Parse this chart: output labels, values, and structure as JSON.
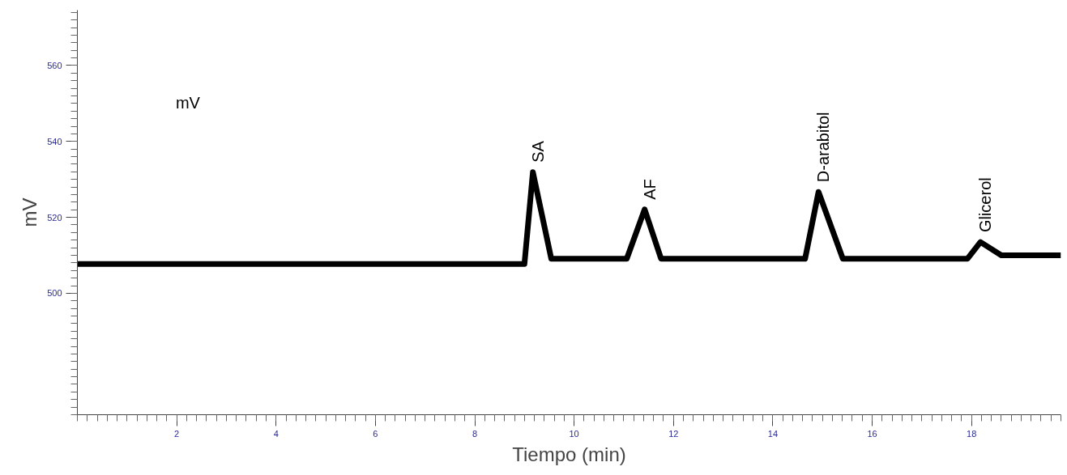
{
  "chart_data": {
    "type": "line",
    "xlabel": "Tiempo (min)",
    "ylabel": "mV",
    "series": [
      {
        "color": "#000000",
        "x": [
          0.0,
          9.0,
          9.17,
          9.54,
          11.06,
          11.42,
          11.75,
          14.65,
          14.92,
          15.41,
          17.92,
          18.18,
          18.6,
          19.8
        ],
        "values": [
          507.7,
          507.7,
          531.9,
          509.1,
          509.1,
          522.1,
          509.1,
          509.1,
          526.7,
          509.1,
          509.1,
          513.5,
          510.0,
          510.0
        ]
      }
    ],
    "xlim": [
      0,
      19.8
    ],
    "ylim": [
      468,
      574.6
    ],
    "xticks": [
      2,
      4,
      6,
      8,
      10,
      12,
      14,
      16,
      18
    ],
    "yticks": [
      500,
      520,
      540,
      560
    ],
    "annotations": [
      "mV",
      {
        "text": "SA",
        "x": 9.17,
        "y": 531.9
      },
      {
        "text": "AF",
        "x": 11.42,
        "y": 522.1
      },
      {
        "text": "D-arabitol",
        "x": 14.92,
        "y": 526.7
      },
      {
        "text": "Glicerol",
        "x": 18.18,
        "y": 513.5
      }
    ],
    "grid": false,
    "marker": "none",
    "line_style": "solid"
  }
}
